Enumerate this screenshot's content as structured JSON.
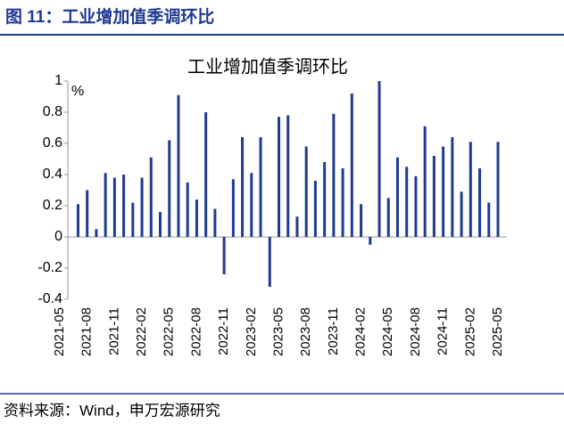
{
  "header": "图 11：工业增加值季调环比",
  "source": "资料来源：Wind，申万宏源研究",
  "chart_data": {
    "type": "bar",
    "title": "工业增加值季调环比",
    "y_unit": "%",
    "categories": [
      "2021-05",
      null,
      null,
      "2021-08",
      null,
      null,
      "2021-11",
      null,
      null,
      "2022-02",
      null,
      null,
      "2022-05",
      null,
      null,
      "2022-08",
      null,
      null,
      "2022-11",
      null,
      null,
      "2023-02",
      null,
      null,
      "2023-05",
      null,
      null,
      "2023-08",
      null,
      null,
      "2023-11",
      null,
      null,
      "2024-02",
      null,
      null,
      "2024-05",
      null,
      null,
      "2024-08",
      null,
      null,
      "2024-11",
      null,
      null,
      "2025-02",
      null,
      null,
      "2025-05"
    ],
    "values": [
      null,
      null,
      0.21,
      0.3,
      0.05,
      0.41,
      0.38,
      0.4,
      0.22,
      0.38,
      0.51,
      0.16,
      0.62,
      0.91,
      0.35,
      0.24,
      0.8,
      0.18,
      -0.24,
      0.37,
      0.64,
      0.41,
      0.64,
      -0.32,
      0.77,
      0.78,
      0.13,
      0.58,
      0.36,
      0.48,
      0.79,
      0.44,
      0.92,
      0.21,
      -0.05,
      1.0,
      0.25,
      0.51,
      0.45,
      0.39,
      0.71,
      0.52,
      0.58,
      0.64,
      0.29,
      0.61,
      0.44,
      0.22,
      0.61
    ],
    "color": "#1f3a93",
    "ylim": [
      -0.4,
      1
    ],
    "yticks": [
      -0.4,
      -0.2,
      0,
      0.2,
      0.4,
      0.6,
      0.8,
      1
    ]
  }
}
